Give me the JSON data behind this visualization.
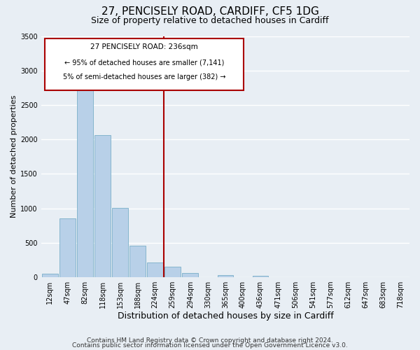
{
  "title": "27, PENCISELY ROAD, CARDIFF, CF5 1DG",
  "subtitle": "Size of property relative to detached houses in Cardiff",
  "bar_labels": [
    "12sqm",
    "47sqm",
    "82sqm",
    "118sqm",
    "153sqm",
    "188sqm",
    "224sqm",
    "259sqm",
    "294sqm",
    "330sqm",
    "365sqm",
    "400sqm",
    "436sqm",
    "471sqm",
    "506sqm",
    "541sqm",
    "577sqm",
    "612sqm",
    "647sqm",
    "683sqm",
    "718sqm"
  ],
  "bar_values": [
    50,
    850,
    2720,
    2060,
    1010,
    460,
    210,
    150,
    60,
    0,
    30,
    0,
    20,
    0,
    0,
    0,
    0,
    0,
    0,
    0,
    0
  ],
  "bar_color": "#b8d0e8",
  "bar_edge_color": "#7aafc8",
  "vline_color": "#aa0000",
  "xlabel": "Distribution of detached houses by size in Cardiff",
  "ylabel": "Number of detached properties",
  "ylim": [
    0,
    3500
  ],
  "yticks": [
    0,
    500,
    1000,
    1500,
    2000,
    2500,
    3000,
    3500
  ],
  "annotation_title": "27 PENCISELY ROAD: 236sqm",
  "annotation_line1": "← 95% of detached houses are smaller (7,141)",
  "annotation_line2": "5% of semi-detached houses are larger (382) →",
  "annotation_box_facecolor": "white",
  "annotation_box_edgecolor": "#aa0000",
  "footer_line1": "Contains HM Land Registry data © Crown copyright and database right 2024.",
  "footer_line2": "Contains public sector information licensed under the Open Government Licence v3.0.",
  "background_color": "#e8eef4",
  "grid_color": "#ffffff",
  "title_fontsize": 11,
  "subtitle_fontsize": 9,
  "axis_label_fontsize": 9,
  "ylabel_fontsize": 8,
  "tick_fontsize": 7,
  "footer_fontsize": 6.5
}
